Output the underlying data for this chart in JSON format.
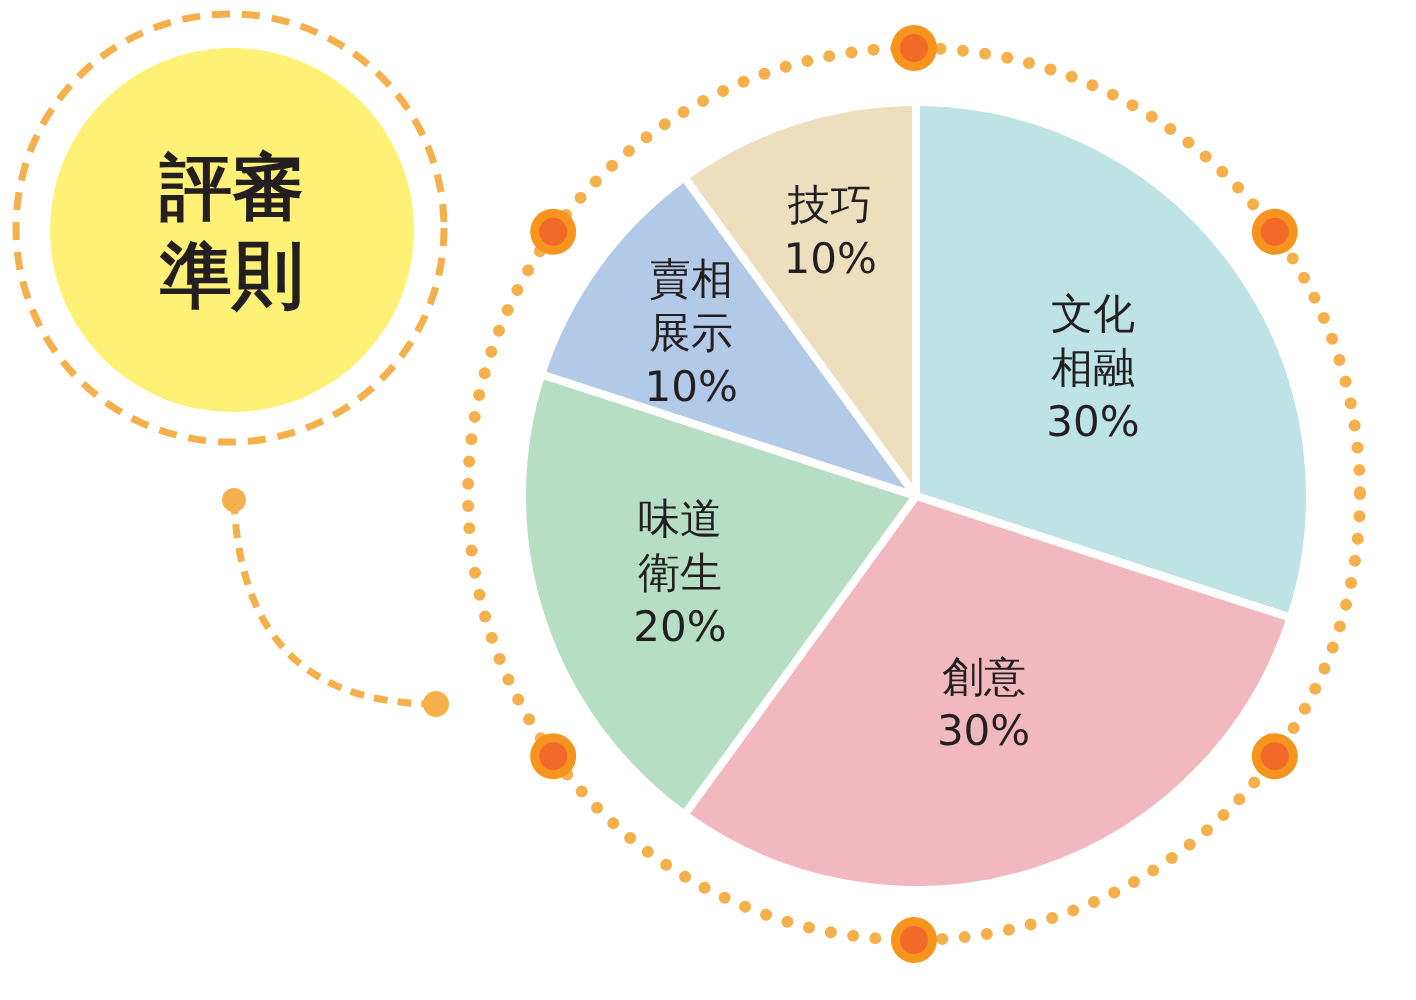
{
  "chart_data": {
    "type": "pie",
    "title": "評審準則",
    "categories": [
      "文化相融",
      "創意",
      "味道衛生",
      "賣相展示",
      "技巧"
    ],
    "values": [
      30,
      30,
      20,
      10,
      10
    ],
    "colors": [
      "#bde3e4",
      "#f2b8bf",
      "#b5dec5",
      "#b3c9e8",
      "#eddfbe"
    ],
    "value_labels": [
      "30%",
      "30%",
      "20%",
      "10%",
      "10%"
    ]
  }
}
